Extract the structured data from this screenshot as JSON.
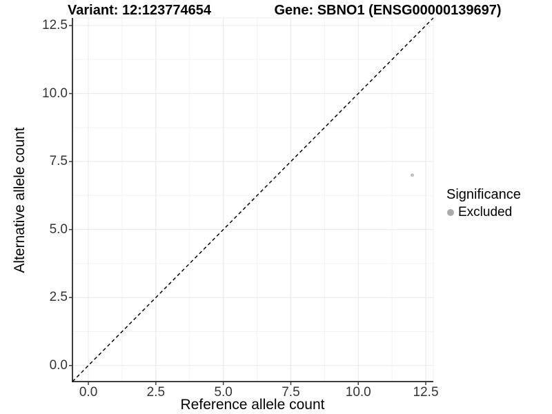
{
  "titles": {
    "variant": "Variant: 12:123774654",
    "gene": "Gene: SBNO1 (ENSG00000139697)"
  },
  "chart_data": {
    "type": "scatter",
    "xlabel": "Reference allele count",
    "ylabel": "Alternative allele count",
    "xlim": [
      -0.59,
      12.78
    ],
    "ylim": [
      -0.59,
      12.78
    ],
    "x_ticks": [
      0.0,
      2.5,
      5.0,
      7.5,
      10.0,
      12.5
    ],
    "y_ticks": [
      0.0,
      2.5,
      5.0,
      7.5,
      10.0,
      12.5
    ],
    "x_tick_labels": [
      "0.0",
      "2.5",
      "5.0",
      "7.5",
      "10.0",
      "12.5"
    ],
    "y_tick_labels": [
      "0.0",
      "2.5",
      "5.0",
      "7.5",
      "10.0",
      "12.5"
    ],
    "x_minor_ticks": [
      1.25,
      3.75,
      6.25,
      8.75,
      11.25
    ],
    "y_minor_ticks": [
      1.25,
      3.75,
      6.25,
      8.75,
      11.25
    ],
    "grid": true,
    "legend_position": "right",
    "points": [
      {
        "x": 12,
        "y": 7,
        "series": "Excluded",
        "color": "#c2c2c2"
      }
    ],
    "reference_line": {
      "type": "abline",
      "slope": 1,
      "intercept": 0,
      "style": "dashed",
      "color": "#000000"
    },
    "legend": {
      "title": "Significance",
      "items": [
        {
          "label": "Excluded",
          "color": "#ababab"
        }
      ]
    }
  },
  "colors": {
    "axis_line": "#3d3d3d",
    "major_grid": "#e8e8e8",
    "minor_grid": "#f3f3f3",
    "panel_border": "#ededed",
    "tick_text": "#333333"
  }
}
